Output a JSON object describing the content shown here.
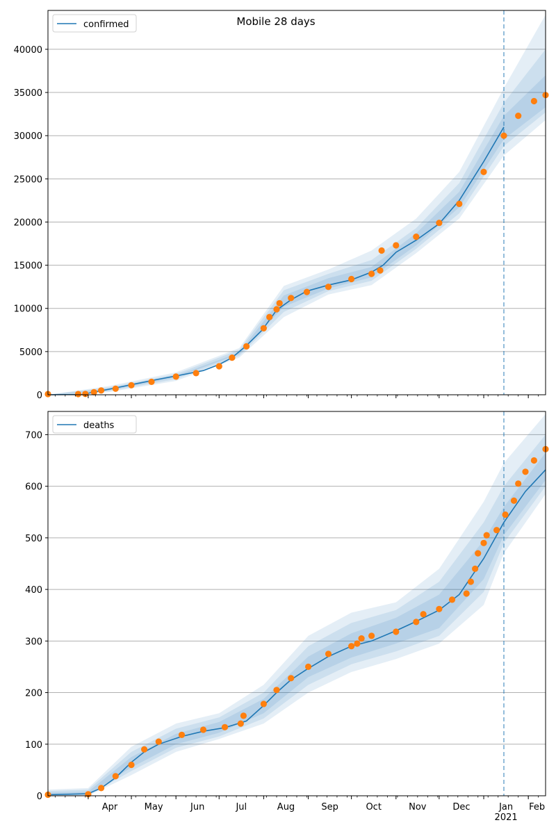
{
  "figure": {
    "title": "Mobile 28 days"
  },
  "colors": {
    "line": "#1f77b4",
    "points": "#ff7f0e",
    "band": "#1f77b4",
    "grid": "#b0b0b0",
    "axis": "#000000"
  },
  "x_axis": {
    "month_labels": [
      "Apr",
      "May",
      "Jun",
      "Jul",
      "Aug",
      "Sep",
      "Oct",
      "Nov",
      "Dec",
      "Jan",
      "Feb"
    ],
    "year_label": "2021"
  },
  "chart_data": [
    {
      "type": "line",
      "legend": {
        "label": "confirmed",
        "placement": "top-left"
      },
      "title": "Mobile 28 days",
      "xlim": [
        "2020-03-04",
        "2021-02-13"
      ],
      "ylim": [
        0,
        44500
      ],
      "yticks": [
        0,
        5000,
        10000,
        15000,
        20000,
        25000,
        30000,
        35000,
        40000
      ],
      "grid": "horizontal",
      "vline_date": "2021-01-15",
      "model_line": [
        [
          "2020-03-04",
          0
        ],
        [
          "2020-03-28",
          50
        ],
        [
          "2020-04-05",
          300
        ],
        [
          "2020-04-20",
          800
        ],
        [
          "2020-05-05",
          1300
        ],
        [
          "2020-05-20",
          1800
        ],
        [
          "2020-06-05",
          2300
        ],
        [
          "2020-06-20",
          2800
        ],
        [
          "2020-07-01",
          3500
        ],
        [
          "2020-07-10",
          4300
        ],
        [
          "2020-07-20",
          5700
        ],
        [
          "2020-07-31",
          7500
        ],
        [
          "2020-08-10",
          9800
        ],
        [
          "2020-08-20",
          11000
        ],
        [
          "2020-08-31",
          12000
        ],
        [
          "2020-09-15",
          12700
        ],
        [
          "2020-10-01",
          13300
        ],
        [
          "2020-10-15",
          14200
        ],
        [
          "2020-10-23",
          15000
        ],
        [
          "2020-11-01",
          16500
        ],
        [
          "2020-11-15",
          17900
        ],
        [
          "2020-12-01",
          19800
        ],
        [
          "2020-12-15",
          22500
        ],
        [
          "2021-01-01",
          27000
        ],
        [
          "2021-01-15",
          31000
        ]
      ],
      "observed": [
        [
          "2020-03-04",
          80
        ],
        [
          "2020-03-25",
          80
        ],
        [
          "2020-03-30",
          100
        ],
        [
          "2020-04-05",
          300
        ],
        [
          "2020-04-10",
          500
        ],
        [
          "2020-04-20",
          700
        ],
        [
          "2020-05-01",
          1100
        ],
        [
          "2020-05-15",
          1500
        ],
        [
          "2020-06-01",
          2100
        ],
        [
          "2020-06-15",
          2500
        ],
        [
          "2020-07-01",
          3300
        ],
        [
          "2020-07-10",
          4300
        ],
        [
          "2020-07-20",
          5600
        ],
        [
          "2020-08-01",
          7700
        ],
        [
          "2020-08-05",
          9000
        ],
        [
          "2020-08-10",
          9900
        ],
        [
          "2020-08-12",
          10600
        ],
        [
          "2020-08-20",
          11200
        ],
        [
          "2020-08-31",
          11900
        ],
        [
          "2020-09-15",
          12500
        ],
        [
          "2020-10-01",
          13400
        ],
        [
          "2020-10-15",
          14000
        ],
        [
          "2020-10-21",
          14400
        ],
        [
          "2020-10-22",
          16700
        ],
        [
          "2020-11-01",
          17300
        ],
        [
          "2020-11-15",
          18300
        ],
        [
          "2020-12-01",
          19900
        ],
        [
          "2020-12-15",
          22100
        ],
        [
          "2021-01-01",
          25800
        ],
        [
          "2021-01-15",
          30000
        ],
        [
          "2021-01-25",
          32300
        ],
        [
          "2021-02-05",
          34000
        ],
        [
          "2021-02-13",
          34700
        ]
      ],
      "bands": {
        "dates": [
          "2020-03-04",
          "2020-04-15",
          "2020-06-01",
          "2020-07-15",
          "2020-08-15",
          "2020-09-15",
          "2020-10-15",
          "2020-11-15",
          "2020-12-15",
          "2021-01-15",
          "2021-02-13"
        ],
        "p95": [
          [
            0,
            0
          ],
          [
            300,
            1000
          ],
          [
            1600,
            2600
          ],
          [
            4300,
            5400
          ],
          [
            9000,
            12600
          ],
          [
            11600,
            14500
          ],
          [
            12700,
            16700
          ],
          [
            16400,
            20400
          ],
          [
            20400,
            25800
          ],
          [
            27700,
            35500
          ],
          [
            31800,
            44000
          ]
        ],
        "p80": [
          [
            0,
            0
          ],
          [
            400,
            850
          ],
          [
            1800,
            2400
          ],
          [
            4500,
            5200
          ],
          [
            9600,
            12100
          ],
          [
            12000,
            14000
          ],
          [
            13200,
            15600
          ],
          [
            16900,
            19300
          ],
          [
            21000,
            24500
          ],
          [
            28800,
            33800
          ],
          [
            32700,
            40000
          ]
        ],
        "p50": [
          [
            0,
            0
          ],
          [
            500,
            700
          ],
          [
            2000,
            2200
          ],
          [
            4700,
            4900
          ],
          [
            10200,
            11500
          ],
          [
            12300,
            13500
          ],
          [
            13600,
            14800
          ],
          [
            17300,
            18700
          ],
          [
            21700,
            23500
          ],
          [
            29600,
            32300
          ],
          [
            33300,
            37000
          ]
        ]
      }
    },
    {
      "type": "line",
      "legend": {
        "label": "deaths",
        "placement": "top-left"
      },
      "xlim": [
        "2020-03-04",
        "2021-02-13"
      ],
      "ylim": [
        0,
        745
      ],
      "yticks": [
        0,
        100,
        200,
        300,
        400,
        500,
        600,
        700
      ],
      "grid": "horizontal",
      "vline_date": "2021-01-15",
      "model_line": [
        [
          "2020-03-04",
          2
        ],
        [
          "2020-04-01",
          4
        ],
        [
          "2020-04-10",
          15
        ],
        [
          "2020-04-20",
          35
        ],
        [
          "2020-05-01",
          65
        ],
        [
          "2020-05-10",
          85
        ],
        [
          "2020-05-20",
          100
        ],
        [
          "2020-06-05",
          115
        ],
        [
          "2020-06-20",
          125
        ],
        [
          "2020-07-05",
          132
        ],
        [
          "2020-07-20",
          145
        ],
        [
          "2020-08-01",
          175
        ],
        [
          "2020-08-10",
          200
        ],
        [
          "2020-08-20",
          225
        ],
        [
          "2020-08-31",
          245
        ],
        [
          "2020-09-15",
          270
        ],
        [
          "2020-10-01",
          290
        ],
        [
          "2020-10-15",
          300
        ],
        [
          "2020-11-01",
          320
        ],
        [
          "2020-11-15",
          338
        ],
        [
          "2020-12-01",
          360
        ],
        [
          "2020-12-15",
          390
        ],
        [
          "2021-01-01",
          460
        ],
        [
          "2021-01-15",
          530
        ],
        [
          "2021-01-30",
          590
        ],
        [
          "2021-02-13",
          632
        ]
      ],
      "observed": [
        [
          "2020-03-04",
          2
        ],
        [
          "2020-04-01",
          3
        ],
        [
          "2020-04-10",
          15
        ],
        [
          "2020-04-20",
          38
        ],
        [
          "2020-05-01",
          60
        ],
        [
          "2020-05-10",
          90
        ],
        [
          "2020-05-20",
          105
        ],
        [
          "2020-06-05",
          118
        ],
        [
          "2020-06-20",
          128
        ],
        [
          "2020-07-05",
          133
        ],
        [
          "2020-07-16",
          140
        ],
        [
          "2020-07-18",
          155
        ],
        [
          "2020-08-01",
          178
        ],
        [
          "2020-08-10",
          205
        ],
        [
          "2020-08-20",
          228
        ],
        [
          "2020-09-01",
          250
        ],
        [
          "2020-09-15",
          275
        ],
        [
          "2020-10-01",
          290
        ],
        [
          "2020-10-05",
          295
        ],
        [
          "2020-10-08",
          305
        ],
        [
          "2020-10-15",
          310
        ],
        [
          "2020-11-01",
          318
        ],
        [
          "2020-11-15",
          337
        ],
        [
          "2020-11-20",
          352
        ],
        [
          "2020-12-01",
          362
        ],
        [
          "2020-12-10",
          380
        ],
        [
          "2020-12-20",
          392
        ],
        [
          "2020-12-23",
          415
        ],
        [
          "2020-12-26",
          440
        ],
        [
          "2020-12-28",
          470
        ],
        [
          "2021-01-01",
          490
        ],
        [
          "2021-01-03",
          505
        ],
        [
          "2021-01-10",
          515
        ],
        [
          "2021-01-16",
          545
        ],
        [
          "2021-01-22",
          572
        ],
        [
          "2021-01-25",
          605
        ],
        [
          "2021-01-30",
          628
        ],
        [
          "2021-02-05",
          650
        ],
        [
          "2021-02-13",
          672
        ]
      ],
      "bands": {
        "dates": [
          "2020-03-04",
          "2020-04-01",
          "2020-05-01",
          "2020-06-01",
          "2020-07-01",
          "2020-08-01",
          "2020-09-01",
          "2020-10-01",
          "2020-11-01",
          "2020-12-01",
          "2021-01-01",
          "2021-01-15",
          "2021-02-13"
        ],
        "p95": [
          [
            0,
            12
          ],
          [
            0,
            15
          ],
          [
            40,
            95
          ],
          [
            85,
            140
          ],
          [
            110,
            160
          ],
          [
            140,
            215
          ],
          [
            200,
            310
          ],
          [
            240,
            355
          ],
          [
            265,
            375
          ],
          [
            295,
            440
          ],
          [
            370,
            570
          ],
          [
            470,
            645
          ],
          [
            585,
            740
          ]
        ],
        "p80": [
          [
            0,
            9
          ],
          [
            1,
            12
          ],
          [
            48,
            85
          ],
          [
            93,
            130
          ],
          [
            115,
            152
          ],
          [
            150,
            200
          ],
          [
            215,
            290
          ],
          [
            255,
            335
          ],
          [
            280,
            360
          ],
          [
            310,
            415
          ],
          [
            395,
            530
          ],
          [
            490,
            600
          ],
          [
            600,
            700
          ]
        ],
        "p50": [
          [
            1,
            6
          ],
          [
            2,
            8
          ],
          [
            55,
            75
          ],
          [
            100,
            120
          ],
          [
            122,
            143
          ],
          [
            160,
            188
          ],
          [
            230,
            270
          ],
          [
            268,
            315
          ],
          [
            295,
            345
          ],
          [
            325,
            390
          ],
          [
            420,
            495
          ],
          [
            505,
            560
          ],
          [
            612,
            665
          ]
        ]
      }
    }
  ]
}
